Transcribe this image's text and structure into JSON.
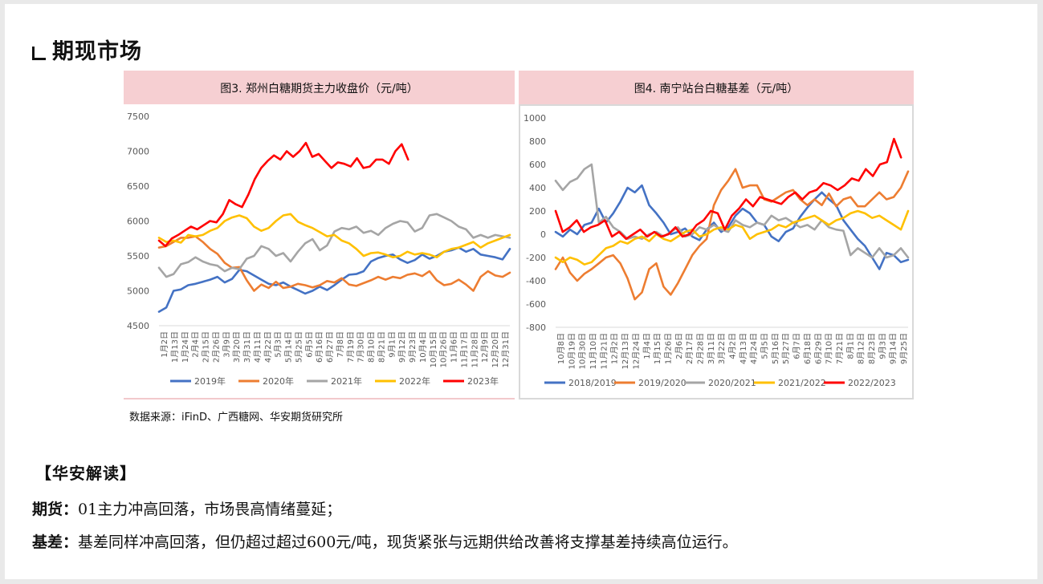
{
  "heading": {
    "mark_label": "",
    "title": "期现市场",
    "prefix": "L."
  },
  "source": "数据来源：iFinD、广西糖网、华安期货研究所",
  "interpretation": {
    "header": "【华安解读】",
    "futures_label": "期货：",
    "futures_text": "01主力冲高回落，市场畏高情绪蔓延；",
    "basis_label": "基差：",
    "basis_text": "基差同样冲高回落，但仍超过超过600元/吨，现货紧张与远期供给改善将支撑基差持续高位运行。"
  },
  "colors": {
    "blue": "#4472c4",
    "orange": "#ed7d31",
    "gray": "#a5a5a5",
    "yellow": "#ffc000",
    "red": "#ff0000",
    "title_band": "#f6cfd2"
  },
  "chart_data": [
    {
      "type": "line",
      "title": "图3. 郑州白糖期货主力收盘价（元/吨）",
      "ylim": [
        4500,
        7500
      ],
      "yticks": [
        "7500",
        "7000",
        "6500",
        "6000",
        "5500",
        "5000",
        "4500"
      ],
      "x_tick_labels": [
        "1月2日",
        "1月13日",
        "1月24日",
        "2月4日",
        "2月15日",
        "2月26日",
        "3月9日",
        "3月20日",
        "3月31日",
        "4月11日",
        "4月22日",
        "5月3日",
        "5月14日",
        "5月25日",
        "6月5日",
        "6月16日",
        "6月27日",
        "7月8日",
        "7月19日",
        "7月30日",
        "8月10日",
        "8月21日",
        "9月1日",
        "9月12日",
        "9月23日",
        "10月4日",
        "10月15日",
        "10月26日",
        "11月6日",
        "11月17日",
        "11月28日",
        "12月9日",
        "12月20日",
        "12月31日"
      ],
      "x_tick_labels_note": "",
      "legend": "bottom",
      "series": [
        {
          "name": "2019年",
          "color": "#4472c4",
          "end": 1.0,
          "values": [
            4700,
            4760,
            5000,
            5020,
            5080,
            5100,
            5130,
            5160,
            5200,
            5120,
            5170,
            5300,
            5280,
            5220,
            5160,
            5100,
            5080,
            5120,
            5060,
            5010,
            4960,
            5000,
            5060,
            5010,
            5080,
            5160,
            5230,
            5240,
            5280,
            5420,
            5470,
            5500,
            5520,
            5450,
            5400,
            5440,
            5520,
            5460,
            5500,
            5560,
            5580,
            5620,
            5560,
            5600,
            5520,
            5500,
            5480,
            5450,
            5600
          ]
        },
        {
          "name": "2020年",
          "color": "#ed7d31",
          "end": 1.0,
          "values": [
            5620,
            5640,
            5700,
            5760,
            5760,
            5780,
            5700,
            5600,
            5530,
            5400,
            5330,
            5340,
            5150,
            5000,
            5090,
            5040,
            5130,
            5040,
            5060,
            5100,
            5080,
            5050,
            5080,
            5140,
            5120,
            5180,
            5090,
            5070,
            5110,
            5150,
            5200,
            5160,
            5200,
            5180,
            5230,
            5250,
            5210,
            5280,
            5150,
            5080,
            5100,
            5160,
            5090,
            5000,
            5200,
            5280,
            5220,
            5200,
            5260
          ]
        },
        {
          "name": "2021年",
          "color": "#a5a5a5",
          "end": 1.0,
          "values": [
            5330,
            5200,
            5240,
            5380,
            5410,
            5480,
            5420,
            5380,
            5360,
            5280,
            5330,
            5310,
            5460,
            5500,
            5640,
            5600,
            5500,
            5540,
            5420,
            5560,
            5680,
            5740,
            5580,
            5650,
            5850,
            5900,
            5880,
            5920,
            5830,
            5860,
            5800,
            5900,
            5960,
            6000,
            5980,
            5850,
            5900,
            6080,
            6100,
            6050,
            6000,
            5920,
            5880,
            5760,
            5800,
            5760,
            5800,
            5780,
            5760
          ]
        },
        {
          "name": "2022年",
          "color": "#ffc000",
          "end": 1.0,
          "values": [
            5760,
            5700,
            5720,
            5690,
            5800,
            5780,
            5800,
            5860,
            5900,
            6000,
            6050,
            6080,
            6040,
            5920,
            5860,
            5900,
            6000,
            6080,
            6100,
            5990,
            5940,
            5900,
            5840,
            5780,
            5800,
            5720,
            5680,
            5600,
            5500,
            5540,
            5550,
            5520,
            5480,
            5500,
            5560,
            5520,
            5540,
            5520,
            5480,
            5560,
            5600,
            5620,
            5660,
            5700,
            5620,
            5680,
            5720,
            5760,
            5800
          ]
        },
        {
          "name": "2023年",
          "color": "#ff0000",
          "end": 0.71,
          "values": [
            5720,
            5640,
            5750,
            5800,
            5860,
            5920,
            5880,
            5940,
            6000,
            5980,
            6100,
            6300,
            6240,
            6200,
            6380,
            6600,
            6760,
            6860,
            6940,
            6880,
            7000,
            6920,
            7000,
            7120,
            6920,
            6960,
            6860,
            6760,
            6840,
            6820,
            6780,
            6900,
            6760,
            6780,
            6880,
            6880,
            6820,
            7000,
            7100,
            6880
          ]
        }
      ]
    },
    {
      "type": "line",
      "title": "图4. 南宁站台白糖基差（元/吨）",
      "ylim": [
        -800,
        1000
      ],
      "yticks": [
        "1000",
        "800",
        "600",
        "400",
        "200",
        "0",
        "-200",
        "-400",
        "-600",
        "-800"
      ],
      "x_tick_labels": [
        "10月8日",
        "10月19日",
        "10月30日",
        "11月10日",
        "11月21日",
        "12月2日",
        "12月13日",
        "12月24日",
        "1月4日",
        "1月15日",
        "1月26日",
        "2月6日",
        "2月17日",
        "2月28日",
        "3月11日",
        "3月22日",
        "4月2日",
        "4月13日",
        "4月24日",
        "5月5日",
        "5月16日",
        "5月27日",
        "6月7日",
        "6月18日",
        "6月29日",
        "7月10日",
        "7月21日",
        "8月1日",
        "8月12日",
        "8月23日",
        "9月3日",
        "9月14日",
        "9月25日"
      ],
      "legend": "bottom",
      "series": [
        {
          "name": "2018/2019",
          "color": "#4472c4",
          "end": 1.0,
          "values": [
            20,
            -20,
            40,
            0,
            80,
            100,
            220,
            100,
            180,
            280,
            400,
            360,
            420,
            250,
            180,
            100,
            0,
            20,
            50,
            -20,
            -50,
            40,
            100,
            20,
            60,
            160,
            220,
            180,
            100,
            80,
            -20,
            -60,
            20,
            50,
            150,
            230,
            300,
            360,
            300,
            250,
            120,
            40,
            -40,
            -100,
            -200,
            -300,
            -160,
            -180,
            -240,
            -220
          ]
        },
        {
          "name": "2019/2020",
          "color": "#ed7d31",
          "end": 1.0,
          "values": [
            -300,
            -200,
            -330,
            -400,
            -340,
            -300,
            -250,
            -200,
            -180,
            -250,
            -380,
            -560,
            -500,
            -300,
            -250,
            -450,
            -520,
            -420,
            -300,
            -180,
            -100,
            -40,
            250,
            380,
            460,
            560,
            400,
            420,
            420,
            300,
            280,
            320,
            360,
            380,
            300,
            250,
            300,
            250,
            350,
            240,
            300,
            320,
            240,
            240,
            300,
            360,
            300,
            320,
            400,
            540
          ]
        },
        {
          "name": "2020/2021",
          "color": "#a5a5a5",
          "end": 1.0,
          "values": [
            460,
            380,
            450,
            480,
            560,
            600,
            100,
            150,
            60,
            20,
            -40,
            -20,
            -40,
            0,
            20,
            -20,
            20,
            60,
            -20,
            0,
            60,
            40,
            80,
            40,
            20,
            120,
            80,
            60,
            100,
            80,
            160,
            120,
            140,
            100,
            60,
            80,
            40,
            120,
            60,
            40,
            30,
            -180,
            -120,
            -160,
            -200,
            -120,
            -200,
            -180,
            -120,
            -200
          ]
        },
        {
          "name": "2021/2022",
          "color": "#ffc000",
          "end": 1.0,
          "values": [
            -200,
            -240,
            -200,
            -220,
            -260,
            -240,
            -180,
            -120,
            -100,
            -60,
            -80,
            -40,
            -20,
            -60,
            0,
            -40,
            -60,
            -20,
            20,
            40,
            -20,
            0,
            40,
            60,
            40,
            80,
            60,
            -40,
            0,
            20,
            40,
            80,
            60,
            100,
            120,
            140,
            160,
            120,
            80,
            120,
            140,
            180,
            200,
            180,
            140,
            160,
            120,
            80,
            40,
            200
          ]
        },
        {
          "name": "2022/2023",
          "color": "#ff0000",
          "end": 0.98,
          "values": [
            200,
            20,
            60,
            120,
            20,
            60,
            80,
            120,
            -20,
            20,
            -40,
            0,
            40,
            -20,
            20,
            -20,
            0,
            60,
            -20,
            0,
            80,
            120,
            200,
            180,
            40,
            160,
            220,
            300,
            240,
            320,
            300,
            280,
            260,
            320,
            360,
            300,
            360,
            380,
            440,
            420,
            380,
            420,
            480,
            460,
            560,
            500,
            600,
            620,
            820,
            660
          ]
        }
      ]
    }
  ]
}
